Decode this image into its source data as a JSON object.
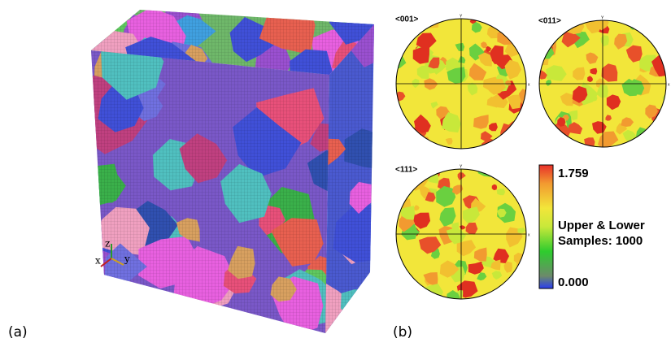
{
  "panels": {
    "a": {
      "label": "(a)",
      "axes": {
        "z": "z",
        "x": "x",
        "y": "y"
      }
    },
    "b": {
      "label": "(b)",
      "pole_figures": [
        {
          "title": "<001>",
          "x_axis": "x",
          "y_axis": "Y"
        },
        {
          "title": "<011>",
          "x_axis": "x",
          "y_axis": "Y"
        },
        {
          "title": "<111>",
          "x_axis": "x",
          "y_axis": "Y"
        }
      ],
      "colorbar": {
        "max": "1.759",
        "min": "0.000",
        "caption_line1": "Upper & Lower",
        "caption_line2": "Samples: 1000"
      }
    }
  }
}
